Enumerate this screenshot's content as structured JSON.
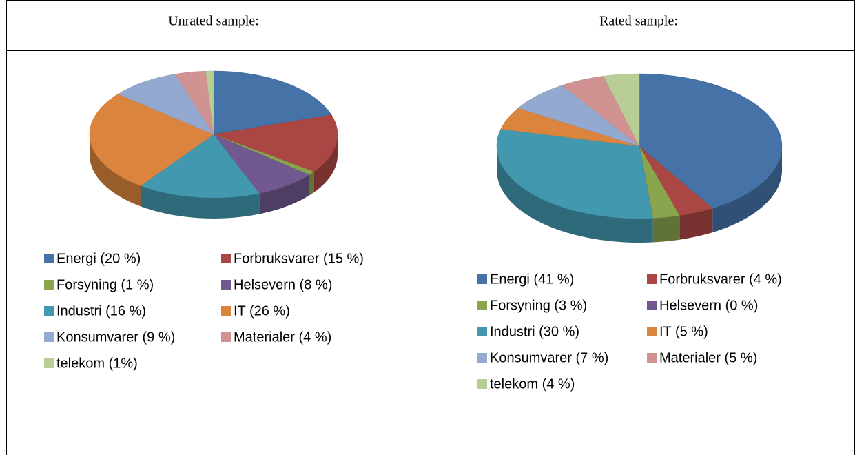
{
  "chart_data": [
    {
      "type": "pie3d",
      "title": "Unrated sample:",
      "categories": [
        "Energi (20 %)",
        "Forbruksvarer (15 %)",
        "Forsyning (1 %)",
        "Helsevern (8 %)",
        "Industri (16 %)",
        "IT (26 %)",
        "Konsumvarer (9 %)",
        "Materialer (4 %)",
        "telekom (1%)"
      ],
      "values": [
        20,
        15,
        1,
        8,
        16,
        26,
        9,
        4,
        1
      ],
      "colors": [
        "#4572a7",
        "#aa4643",
        "#89a54e",
        "#71588f",
        "#4198af",
        "#db843d",
        "#93a9cf",
        "#d19392",
        "#b9cd96"
      ]
    },
    {
      "type": "pie3d",
      "title": "Rated sample:",
      "categories": [
        "Energi (41 %)",
        "Forbruksvarer (4 %)",
        "Forsyning (3 %)",
        "Helsevern (0 %)",
        "Industri (30 %)",
        "IT (5 %)",
        "Konsumvarer (7 %)",
        "Materialer (5 %)",
        "telekom (4 %)"
      ],
      "values": [
        41,
        4,
        3,
        0,
        30,
        5,
        7,
        5,
        4
      ],
      "colors": [
        "#4572a7",
        "#aa4643",
        "#89a54e",
        "#71588f",
        "#4198af",
        "#db843d",
        "#93a9cf",
        "#d19392",
        "#b9cd96"
      ]
    }
  ]
}
